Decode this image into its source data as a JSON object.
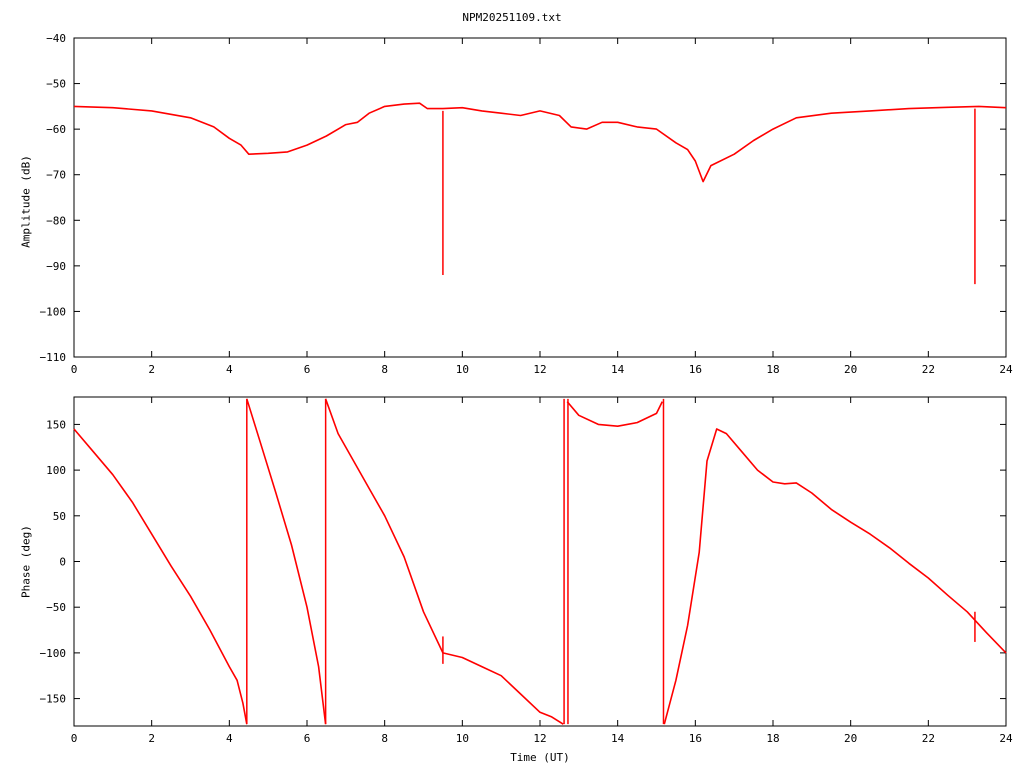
{
  "title": "NPM20251109.txt",
  "chart_data": [
    {
      "type": "line",
      "ylabel": "Amplitude (dB)",
      "xlabel": "",
      "xlim": [
        0,
        24
      ],
      "ylim": [
        -110,
        -40
      ],
      "x_ticks": [
        "0",
        "2",
        "4",
        "6",
        "8",
        "10",
        "12",
        "14",
        "16",
        "18",
        "20",
        "22",
        "24"
      ],
      "y_ticks": [
        "-40",
        "-50",
        "-60",
        "-70",
        "-80",
        "-90",
        "-100",
        "-110"
      ],
      "grid": false,
      "series": [
        {
          "color": "#ff0000",
          "x": [
            0,
            1,
            2,
            3,
            3.6,
            4.0,
            4.3,
            4.5,
            5.0,
            5.5,
            6.0,
            6.5,
            7.0,
            7.3,
            7.6,
            8.0,
            8.5,
            8.9,
            9.1,
            9.5,
            10.0,
            10.5,
            11.0,
            11.5,
            12.0,
            12.5,
            12.8,
            13.2,
            13.6,
            14.0,
            14.5,
            15.0,
            15.5,
            15.8,
            16.0,
            16.2,
            16.4,
            17.0,
            17.5,
            18.0,
            18.6,
            19.5,
            20.5,
            21.5,
            22.5,
            23.3,
            24.0
          ],
          "y": [
            -55,
            -55.3,
            -56,
            -57.5,
            -59.5,
            -62,
            -63.5,
            -65.5,
            -65.3,
            -65,
            -63.5,
            -61.5,
            -59,
            -58.5,
            -56.5,
            -55,
            -54.5,
            -54.3,
            -55.5,
            -55.5,
            -55.3,
            -56,
            -56.5,
            -57,
            -56,
            -57,
            -59.5,
            -60,
            -58.5,
            -58.5,
            -59.5,
            -60,
            -63,
            -64.5,
            -67,
            -71.5,
            -68,
            -65.5,
            -62.5,
            -60,
            -57.5,
            -56.5,
            -56,
            -55.5,
            -55.2,
            -55,
            -55.3
          ]
        }
      ],
      "spikes": [
        {
          "x": 9.5,
          "y_from": -56,
          "y_to": -92
        },
        {
          "x": 23.2,
          "y_from": -55.5,
          "y_to": -94
        }
      ]
    },
    {
      "type": "line",
      "ylabel": "Phase (deg)",
      "xlabel": "Time (UT)",
      "xlim": [
        0,
        24
      ],
      "ylim": [
        -180,
        180
      ],
      "x_ticks": [
        "0",
        "2",
        "4",
        "6",
        "8",
        "10",
        "12",
        "14",
        "16",
        "18",
        "20",
        "22",
        "24"
      ],
      "y_ticks": [
        "150",
        "100",
        "50",
        "0",
        "-50",
        "-100",
        "-150"
      ],
      "y_tick_values": [
        150,
        100,
        50,
        0,
        -50,
        -100,
        -150
      ],
      "grid": false,
      "series": [
        {
          "color": "#ff0000",
          "segments": [
            {
              "x": [
                0,
                0.5,
                1.0,
                1.5,
                2.0,
                2.5,
                3.0,
                3.5,
                4.0,
                4.2,
                4.35,
                4.45
              ],
              "y": [
                145,
                120,
                95,
                65,
                30,
                -5,
                -38,
                -75,
                -115,
                -130,
                -155,
                -178
              ]
            },
            {
              "x": [
                4.45,
                4.8,
                5.2,
                5.6,
                6.0,
                6.3,
                6.48
              ],
              "y": [
                178,
                130,
                75,
                18,
                -50,
                -115,
                -178
              ]
            },
            {
              "x": [
                6.48,
                6.8,
                7.2,
                7.6,
                8.0,
                8.5,
                9.0,
                9.5,
                10.0,
                10.5,
                11.0,
                11.5,
                12.0,
                12.3,
                12.6
              ],
              "y": [
                178,
                140,
                110,
                80,
                50,
                5,
                -55,
                -100,
                -105,
                -115,
                -125,
                -145,
                -165,
                -170,
                -178
              ]
            },
            {
              "x": [
                12.7,
                13.0,
                13.5,
                14.0,
                14.5,
                15.0,
                15.15
              ],
              "y": [
                175,
                160,
                150,
                148,
                152,
                162,
                175
              ]
            },
            {
              "x": [
                15.2,
                15.5,
                15.8,
                16.1,
                16.3,
                16.55,
                16.8,
                17.2,
                17.6,
                18.0,
                18.3,
                18.6,
                19.0,
                19.5,
                20.0,
                20.5,
                21.0,
                21.5,
                22.0,
                22.5,
                23.0,
                23.5,
                24.0
              ],
              "y": [
                -178,
                -130,
                -70,
                10,
                110,
                145,
                140,
                120,
                100,
                87,
                85,
                86,
                75,
                57,
                43,
                30,
                15,
                -2,
                -18,
                -37,
                -55,
                -78,
                -100
              ]
            }
          ]
        }
      ],
      "spikes": [
        {
          "x": 4.45,
          "y_from": -178,
          "y_to": 178
        },
        {
          "x": 6.48,
          "y_from": -178,
          "y_to": 178
        },
        {
          "x": 12.62,
          "y_from": -178,
          "y_to": 178
        },
        {
          "x": 12.72,
          "y_from": -178,
          "y_to": 178
        },
        {
          "x": 15.18,
          "y_from": -178,
          "y_to": 178
        },
        {
          "x": 9.5,
          "y_from": -82,
          "y_to": -112
        },
        {
          "x": 23.2,
          "y_from": -55,
          "y_to": -88
        }
      ]
    }
  ]
}
